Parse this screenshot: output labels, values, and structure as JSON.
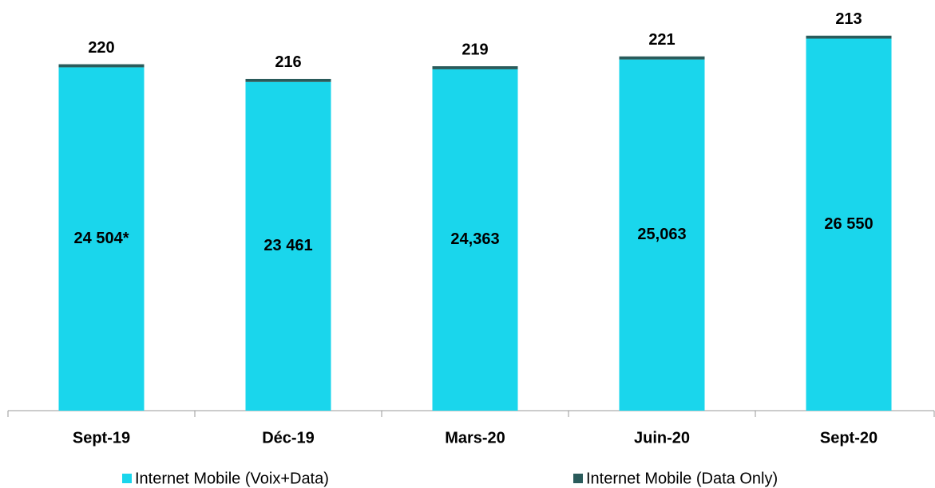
{
  "chart_data": {
    "type": "stacked_bar",
    "categories": [
      "Sept-19",
      "Déc-19",
      "Mars-20",
      "Juin-20",
      "Sept-20"
    ],
    "series": [
      {
        "name": "Internet Mobile (Voix+Data)",
        "color": "#1ad6ec",
        "values": [
          24504,
          23461,
          24363,
          25063,
          26550
        ],
        "value_labels": [
          "24 504*",
          "23 461",
          "24,363",
          "25,063",
          "26 550"
        ]
      },
      {
        "name": "Internet Mobile (Data Only)",
        "color": "#2a5b5b",
        "values": [
          220,
          216,
          219,
          221,
          213
        ]
      }
    ],
    "ylim": [
      0,
      28000
    ]
  }
}
